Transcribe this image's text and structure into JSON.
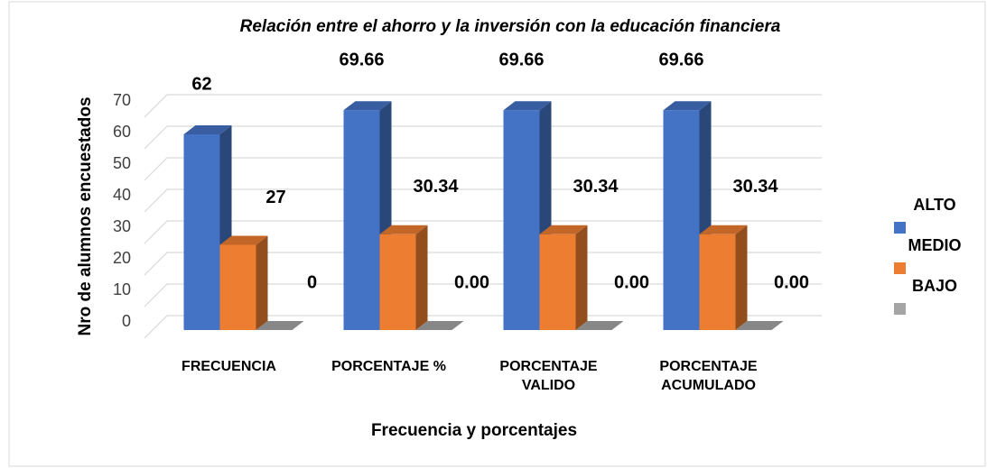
{
  "chart_data": {
    "type": "bar3d",
    "title": "Relación entre el ahorro y la inversión con la educación financiera",
    "x_label": "Frecuencia y porcentajes",
    "y_label": "Nro de alumnos encuestados",
    "categories": [
      "FRECUENCIA",
      "PORCENTAJE %",
      "PORCENTAJE\nVALIDO",
      "PORCENTAJE\nACUMULADO"
    ],
    "series": [
      {
        "name": "ALTO",
        "color": "#4472c4",
        "values": [
          62,
          69.66,
          69.66,
          69.66
        ]
      },
      {
        "name": "MEDIO",
        "color": "#ed7d31",
        "values": [
          27,
          30.34,
          30.34,
          30.34
        ]
      },
      {
        "name": "BAJO",
        "color": "#a5a5a5",
        "values": [
          0,
          0,
          0,
          0
        ],
        "value_labels": [
          "0",
          "0.00",
          "0.00",
          "0.00"
        ]
      }
    ],
    "ylim": [
      0,
      70
    ],
    "yticks": [
      0,
      10,
      20,
      30,
      40,
      50,
      60,
      70
    ],
    "grid": true,
    "legend": "right"
  }
}
